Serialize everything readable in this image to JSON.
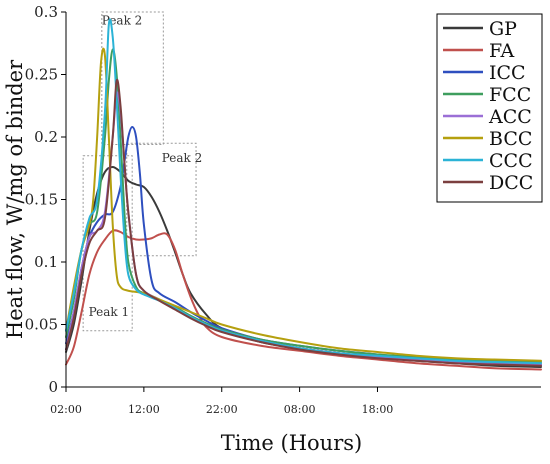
{
  "chart_data": {
    "type": "line",
    "title": "",
    "xlabel": "Time (Hours)",
    "ylabel": "Heat flow, W/mg of binder",
    "xlim": [
      0,
      61
    ],
    "ylim": [
      0,
      0.3
    ],
    "x_ticks": [
      {
        "x": 0,
        "label": "02:00"
      },
      {
        "x": 10,
        "label": "12:00"
      },
      {
        "x": 20,
        "label": "22:00"
      },
      {
        "x": 30,
        "label": "08:00"
      },
      {
        "x": 40,
        "label": "18:00"
      }
    ],
    "y_ticks": [
      {
        "y": 0,
        "label": "0"
      },
      {
        "y": 0.05,
        "label": "0.05"
      },
      {
        "y": 0.1,
        "label": "0.1"
      },
      {
        "y": 0.15,
        "label": "0.15"
      },
      {
        "y": 0.2,
        "label": "0.2"
      },
      {
        "y": 0.25,
        "label": "0.25"
      },
      {
        "y": 0.3,
        "label": "0.3"
      }
    ],
    "grid": false,
    "legend_position": "top-right",
    "annotations": [
      {
        "text": "Peak 2",
        "box": {
          "x0": 4.6,
          "x1": 12.5,
          "y0": 0.194,
          "y1": 0.3
        }
      },
      {
        "text": "Peak 2",
        "box": {
          "x0": 7.8,
          "x1": 16.7,
          "y0": 0.105,
          "y1": 0.195
        }
      },
      {
        "text": "Peak 1",
        "box": {
          "x0": 2.2,
          "x1": 8.5,
          "y0": 0.045,
          "y1": 0.185
        }
      }
    ],
    "series": [
      {
        "name": "GP",
        "color": "#3a3a3a",
        "x": [
          0,
          1,
          2,
          3,
          4,
          5,
          6,
          7,
          8,
          9,
          10,
          11,
          12,
          13,
          14,
          15,
          16,
          18,
          20,
          25,
          30,
          35,
          40,
          45,
          50,
          55,
          61
        ],
        "y": [
          0.028,
          0.05,
          0.085,
          0.125,
          0.155,
          0.172,
          0.176,
          0.172,
          0.165,
          0.162,
          0.16,
          0.152,
          0.14,
          0.125,
          0.108,
          0.09,
          0.075,
          0.058,
          0.047,
          0.036,
          0.031,
          0.027,
          0.024,
          0.021,
          0.019,
          0.017,
          0.016
        ]
      },
      {
        "name": "FA",
        "color": "#c0504d",
        "x": [
          0,
          1,
          2,
          3,
          4,
          5,
          6,
          7,
          8,
          9,
          10,
          11,
          12,
          13,
          14,
          15,
          16,
          17,
          18,
          20,
          25,
          30,
          35,
          40,
          45,
          50,
          55,
          61
        ],
        "y": [
          0.018,
          0.032,
          0.06,
          0.09,
          0.108,
          0.118,
          0.125,
          0.124,
          0.12,
          0.118,
          0.118,
          0.119,
          0.122,
          0.122,
          0.11,
          0.09,
          0.072,
          0.058,
          0.048,
          0.04,
          0.033,
          0.029,
          0.025,
          0.022,
          0.019,
          0.017,
          0.015,
          0.014
        ]
      },
      {
        "name": "ICC",
        "color": "#2e4fbf",
        "x": [
          0,
          1,
          2,
          3,
          4,
          5,
          6,
          7,
          7.5,
          8,
          8.5,
          9,
          9.5,
          10,
          11,
          12,
          14,
          16,
          18,
          20,
          25,
          30,
          35,
          40,
          45,
          50,
          55,
          61
        ],
        "y": [
          0.035,
          0.06,
          0.095,
          0.12,
          0.132,
          0.138,
          0.14,
          0.16,
          0.18,
          0.2,
          0.208,
          0.2,
          0.17,
          0.13,
          0.085,
          0.075,
          0.068,
          0.06,
          0.053,
          0.047,
          0.038,
          0.033,
          0.029,
          0.026,
          0.023,
          0.021,
          0.019,
          0.018
        ]
      },
      {
        "name": "FCC",
        "color": "#3e9e5e",
        "x": [
          0,
          1,
          2,
          3,
          4,
          5,
          5.5,
          6,
          6.5,
          7,
          7.5,
          8,
          9,
          10,
          12,
          14,
          16,
          18,
          20,
          25,
          30,
          35,
          40,
          45,
          50,
          55,
          61
        ],
        "y": [
          0.04,
          0.07,
          0.11,
          0.13,
          0.14,
          0.2,
          0.245,
          0.27,
          0.25,
          0.2,
          0.14,
          0.1,
          0.08,
          0.075,
          0.07,
          0.064,
          0.057,
          0.051,
          0.046,
          0.038,
          0.033,
          0.029,
          0.026,
          0.024,
          0.022,
          0.021,
          0.02
        ]
      },
      {
        "name": "ACC",
        "color": "#9b6fd6",
        "x": [
          0,
          1,
          2,
          3,
          4,
          5,
          6,
          6.5,
          7,
          7.5,
          8,
          9,
          10,
          12,
          14,
          16,
          18,
          20,
          25,
          30,
          35,
          40,
          45,
          50,
          55,
          61
        ],
        "y": [
          0.03,
          0.06,
          0.095,
          0.12,
          0.125,
          0.14,
          0.2,
          0.235,
          0.22,
          0.18,
          0.14,
          0.09,
          0.077,
          0.07,
          0.063,
          0.056,
          0.05,
          0.045,
          0.037,
          0.031,
          0.027,
          0.024,
          0.022,
          0.02,
          0.019,
          0.018
        ]
      },
      {
        "name": "BCC",
        "color": "#b5a00f",
        "x": [
          0,
          1,
          2,
          3,
          3.5,
          4,
          4.5,
          5,
          5.5,
          6,
          6.5,
          7,
          8,
          10,
          12,
          14,
          16,
          18,
          20,
          25,
          30,
          35,
          40,
          45,
          50,
          55,
          61
        ],
        "y": [
          0.045,
          0.08,
          0.11,
          0.13,
          0.15,
          0.2,
          0.26,
          0.265,
          0.2,
          0.13,
          0.09,
          0.08,
          0.077,
          0.075,
          0.07,
          0.065,
          0.06,
          0.055,
          0.05,
          0.042,
          0.036,
          0.031,
          0.028,
          0.025,
          0.023,
          0.022,
          0.021
        ]
      },
      {
        "name": "CCC",
        "color": "#2bb3d6",
        "x": [
          0,
          1,
          2,
          3,
          4,
          5,
          5.5,
          6,
          6.5,
          7,
          7.5,
          8,
          9,
          10,
          12,
          14,
          16,
          18,
          20,
          25,
          30,
          35,
          40,
          45,
          50,
          55,
          61
        ],
        "y": [
          0.045,
          0.075,
          0.11,
          0.135,
          0.15,
          0.22,
          0.29,
          0.28,
          0.23,
          0.17,
          0.12,
          0.09,
          0.078,
          0.074,
          0.069,
          0.063,
          0.056,
          0.05,
          0.045,
          0.037,
          0.031,
          0.027,
          0.025,
          0.023,
          0.021,
          0.02,
          0.019
        ]
      },
      {
        "name": "DCC",
        "color": "#7b3f3f",
        "x": [
          0,
          1,
          2,
          3,
          4,
          5,
          6,
          6.5,
          7,
          7.5,
          8,
          9,
          10,
          12,
          14,
          16,
          18,
          20,
          25,
          30,
          35,
          40,
          45,
          50,
          55,
          61
        ],
        "y": [
          0.03,
          0.055,
          0.09,
          0.115,
          0.125,
          0.135,
          0.2,
          0.245,
          0.225,
          0.18,
          0.14,
          0.09,
          0.077,
          0.069,
          0.062,
          0.055,
          0.049,
          0.044,
          0.036,
          0.03,
          0.026,
          0.023,
          0.021,
          0.019,
          0.018,
          0.017
        ]
      }
    ]
  }
}
